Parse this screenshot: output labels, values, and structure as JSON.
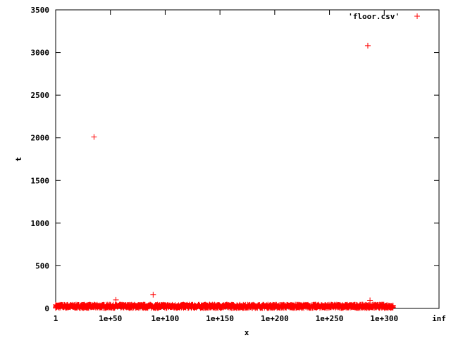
{
  "chart_data": {
    "type": "scatter",
    "xlabel": "x",
    "ylabel": "t",
    "x_scale": "log10",
    "x_ticks": [
      {
        "label": "1",
        "exp": 0
      },
      {
        "label": "1e+50",
        "exp": 50
      },
      {
        "label": "1e+100",
        "exp": 100
      },
      {
        "label": "1e+150",
        "exp": 150
      },
      {
        "label": "1e+200",
        "exp": 200
      },
      {
        "label": "1e+250",
        "exp": 250
      },
      {
        "label": "1e+300",
        "exp": 300
      },
      {
        "label": "inf",
        "exp": 350
      }
    ],
    "y_ticks": [
      0,
      500,
      1000,
      1500,
      2000,
      2500,
      3000,
      3500
    ],
    "ylim": [
      0,
      3500
    ],
    "grid": false,
    "legend_position": "top-right",
    "series": [
      {
        "name": "'floor.csv'",
        "color": "#ff0000",
        "marker": "plus",
        "dense_band": {
          "x_exp_range": [
            0,
            308
          ],
          "t_range": [
            5,
            45
          ]
        },
        "outliers": [
          {
            "x_exp": 35,
            "t": 2010
          },
          {
            "x_exp": 55,
            "t": 100
          },
          {
            "x_exp": 89,
            "t": 160
          },
          {
            "x_exp": 285,
            "t": 3080
          },
          {
            "x_exp": 287,
            "t": 95
          }
        ]
      }
    ]
  }
}
